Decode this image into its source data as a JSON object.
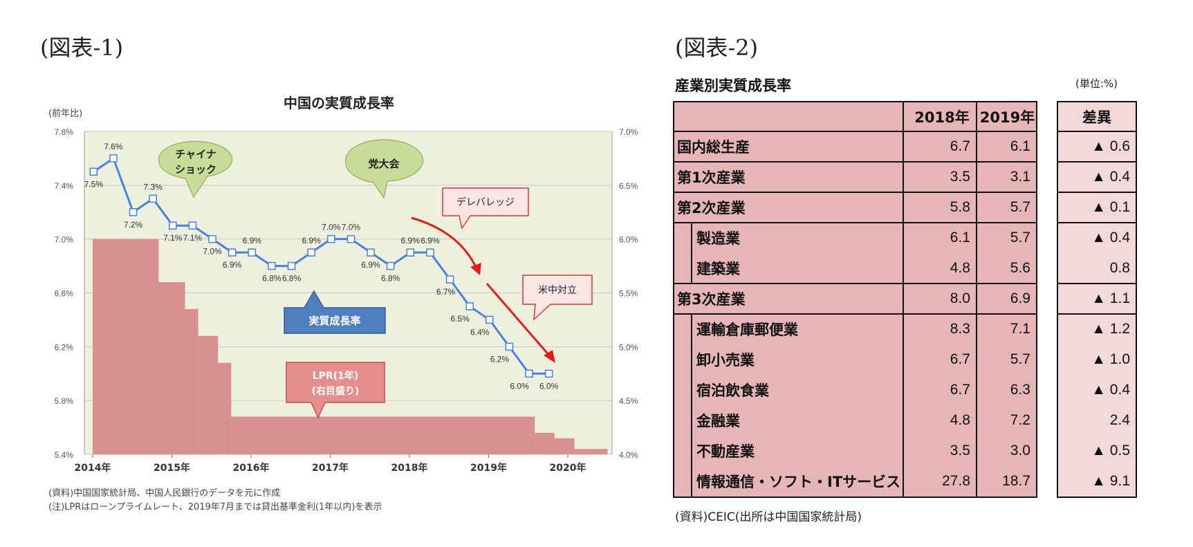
{
  "fig1_label": "(図表-1)",
  "fig2_label": "(図表-2)",
  "chart_data": {
    "type": "line",
    "title": "中国の実質成長率",
    "ylabel": "(前年比)",
    "ylim": [
      5.4,
      7.8
    ],
    "y2lim": [
      4.0,
      7.0
    ],
    "yticks": [
      "7.8%",
      "7.4%",
      "7.0%",
      "6.6%",
      "6.2%",
      "5.8%",
      "5.4%"
    ],
    "y2ticks": [
      "7.0%",
      "6.5%",
      "6.0%",
      "5.5%",
      "5.0%",
      "4.5%",
      "4.0%"
    ],
    "xticks": [
      "2014年",
      "2015年",
      "2016年",
      "2017年",
      "2018年",
      "2019年",
      "2020年"
    ],
    "series": [
      {
        "name": "実質成長率",
        "x": [
          "2014Q1",
          "2014Q2",
          "2014Q3",
          "2014Q4",
          "2015Q1",
          "2015Q2",
          "2015Q3",
          "2015Q4",
          "2016Q1",
          "2016Q2",
          "2016Q3",
          "2016Q4",
          "2017Q1",
          "2017Q2",
          "2017Q3",
          "2017Q4",
          "2018Q1",
          "2018Q2",
          "2018Q3",
          "2018Q4",
          "2019Q1",
          "2019Q2",
          "2019Q3",
          "2019Q4"
        ],
        "values": [
          7.5,
          7.6,
          7.2,
          7.3,
          7.1,
          7.1,
          7.0,
          6.9,
          6.9,
          6.8,
          6.8,
          6.9,
          7.0,
          7.0,
          6.9,
          6.8,
          6.9,
          6.9,
          6.7,
          6.5,
          6.4,
          6.2,
          6.0,
          6.0
        ],
        "labels": [
          "7.5%",
          "7.6%",
          "7.2%",
          "7.3%",
          "7.1%",
          "7.1%",
          "7.0%",
          "6.9%",
          "6.9%",
          "6.8%",
          "6.8%",
          "6.9%",
          "7.0%",
          "7.0%",
          "6.9%",
          "6.8%",
          "6.9%",
          "6.9%",
          "6.7%",
          "6.5%",
          "6.4%",
          "6.2%",
          "6.0%",
          "6.0%"
        ],
        "color": "#4a7fe0"
      },
      {
        "name": "LPR(1年)(右目盛り)",
        "axis": "right",
        "steps": [
          {
            "from": "2014-01",
            "to": "2014-11",
            "value": 6.0
          },
          {
            "from": "2014-11",
            "to": "2015-03",
            "value": 5.6
          },
          {
            "from": "2015-03",
            "to": "2015-05",
            "value": 5.35
          },
          {
            "from": "2015-05",
            "to": "2015-08",
            "value": 5.1
          },
          {
            "from": "2015-08",
            "to": "2015-10",
            "value": 4.85
          },
          {
            "from": "2015-10",
            "to": "2019-08",
            "value": 4.35
          },
          {
            "from": "2019-08",
            "to": "2019-11",
            "value": 4.2
          },
          {
            "from": "2019-11",
            "to": "2020-02",
            "value": 4.15
          },
          {
            "from": "2020-02",
            "to": "2020-07",
            "value": 4.05
          }
        ],
        "color": "#d99090"
      }
    ],
    "annotations": {
      "china_shock": "チャイナ\nショック",
      "party_congress": "党大会",
      "deleverage": "デレバレッジ",
      "us_china": "米中対立",
      "gdp_label": "実質成長率",
      "lpr_label": "LPR(1年)\n(右目盛り)"
    }
  },
  "notes": {
    "source": "(資料)中国国家統計局、中国人民銀行のデータを元に作成",
    "note": "(注)LPRはローンプライムレート、2019年7月までは貸出基準金利(1年以内)を表示"
  },
  "table": {
    "title": "産業別実質成長率",
    "unit": "(単位:%)",
    "headers": [
      "2018年",
      "2019年",
      "差異"
    ],
    "rows": [
      {
        "name": "国内総生産",
        "v2018": "6.7",
        "v2019": "6.1",
        "diff": "▲ 0.6",
        "indent": false
      },
      {
        "name": "第1次産業",
        "v2018": "3.5",
        "v2019": "3.1",
        "diff": "▲ 0.4",
        "indent": false
      },
      {
        "name": "第2次産業",
        "v2018": "5.8",
        "v2019": "5.7",
        "diff": "▲ 0.1",
        "indent": false
      },
      {
        "name": "製造業",
        "v2018": "6.1",
        "v2019": "5.7",
        "diff": "▲ 0.4",
        "indent": true
      },
      {
        "name": "建築業",
        "v2018": "4.8",
        "v2019": "5.6",
        "diff": "0.8",
        "indent": true
      },
      {
        "name": "第3次産業",
        "v2018": "8.0",
        "v2019": "6.9",
        "diff": "▲ 1.1",
        "indent": false
      },
      {
        "name": "運輸倉庫郵便業",
        "v2018": "8.3",
        "v2019": "7.1",
        "diff": "▲ 1.2",
        "indent": true
      },
      {
        "name": "卸小売業",
        "v2018": "6.7",
        "v2019": "5.7",
        "diff": "▲ 1.0",
        "indent": true
      },
      {
        "name": "宿泊飲食業",
        "v2018": "6.7",
        "v2019": "6.3",
        "diff": "▲ 0.4",
        "indent": true
      },
      {
        "name": "金融業",
        "v2018": "4.8",
        "v2019": "7.2",
        "diff": "2.4",
        "indent": true
      },
      {
        "name": "不動産業",
        "v2018": "3.5",
        "v2019": "3.0",
        "diff": "▲ 0.5",
        "indent": true
      },
      {
        "name": "情報通信・ソフト・ITサービス",
        "v2018": "27.8",
        "v2019": "18.7",
        "diff": "▲ 9.1",
        "indent": true
      }
    ],
    "source": "(資料)CEIC(出所は中国国家統計局)"
  }
}
